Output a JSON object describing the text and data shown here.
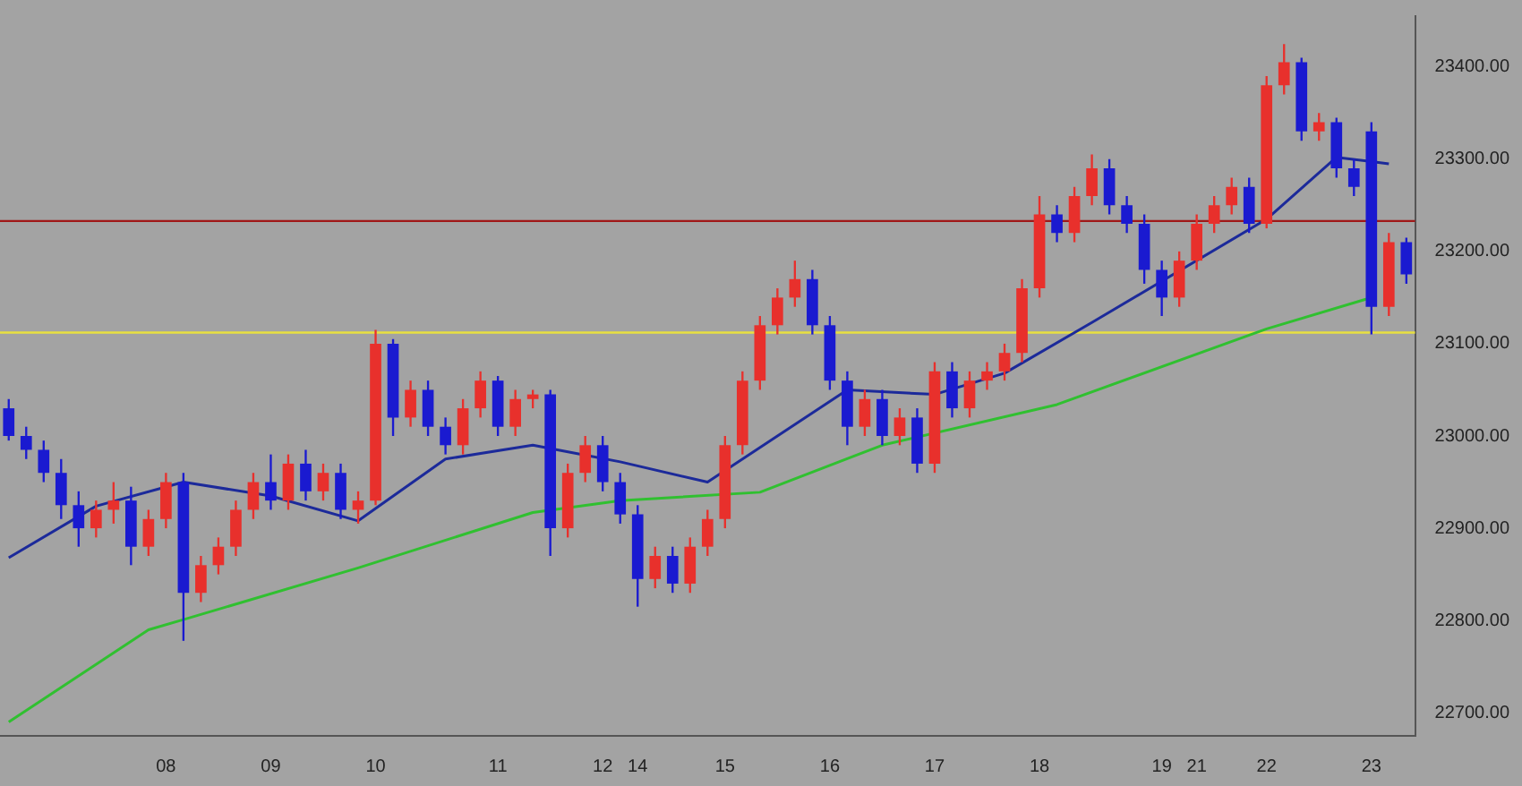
{
  "chart_data": {
    "type": "candlestick",
    "categories": [
      null,
      null,
      null,
      null,
      null,
      null,
      null,
      null,
      null,
      "08",
      null,
      null,
      null,
      null,
      null,
      "09",
      null,
      null,
      null,
      null,
      null,
      "10",
      null,
      null,
      null,
      null,
      null,
      null,
      "11",
      null,
      null,
      null,
      null,
      null,
      "12",
      null,
      "14",
      null,
      null,
      null,
      null,
      "15",
      null,
      null,
      null,
      null,
      null,
      "16",
      null,
      null,
      null,
      null,
      null,
      "17",
      null,
      null,
      null,
      null,
      null,
      "18",
      null,
      null,
      null,
      null,
      null,
      null,
      "19",
      null,
      "21",
      null,
      null,
      null,
      "22",
      null,
      null,
      null,
      null,
      null,
      "23",
      null,
      null
    ],
    "ohlc": [
      [
        23030,
        23040,
        22995,
        23000
      ],
      [
        23000,
        23010,
        22975,
        22985
      ],
      [
        22985,
        22995,
        22950,
        22960
      ],
      [
        22960,
        22975,
        22910,
        22925
      ],
      [
        22925,
        22940,
        22880,
        22900
      ],
      [
        22900,
        22930,
        22890,
        22920
      ],
      [
        22920,
        22950,
        22905,
        22930
      ],
      [
        22930,
        22945,
        22860,
        22880
      ],
      [
        22880,
        22920,
        22870,
        22910
      ],
      [
        22910,
        22960,
        22900,
        22950
      ],
      [
        22950,
        22960,
        22778,
        22830
      ],
      [
        22830,
        22870,
        22820,
        22860
      ],
      [
        22860,
        22890,
        22850,
        22880
      ],
      [
        22880,
        22930,
        22870,
        22920
      ],
      [
        22920,
        22960,
        22910,
        22950
      ],
      [
        22950,
        22980,
        22920,
        22930
      ],
      [
        22930,
        22980,
        22920,
        22970
      ],
      [
        22970,
        22985,
        22930,
        22940
      ],
      [
        22940,
        22970,
        22930,
        22960
      ],
      [
        22960,
        22970,
        22910,
        22920
      ],
      [
        22920,
        22940,
        22905,
        22930
      ],
      [
        22930,
        23115,
        22925,
        23100
      ],
      [
        23100,
        23105,
        23000,
        23020
      ],
      [
        23020,
        23060,
        23010,
        23050
      ],
      [
        23050,
        23060,
        23000,
        23010
      ],
      [
        23010,
        23020,
        22980,
        22990
      ],
      [
        22990,
        23040,
        22980,
        23030
      ],
      [
        23030,
        23070,
        23020,
        23060
      ],
      [
        23060,
        23065,
        23000,
        23010
      ],
      [
        23010,
        23050,
        23000,
        23040
      ],
      [
        23040,
        23050,
        23030,
        23045
      ],
      [
        23045,
        23050,
        22870,
        22900
      ],
      [
        22900,
        22970,
        22890,
        22960
      ],
      [
        22960,
        23000,
        22950,
        22990
      ],
      [
        22990,
        23000,
        22940,
        22950
      ],
      [
        22950,
        22960,
        22905,
        22915
      ],
      [
        22915,
        22925,
        22815,
        22845
      ],
      [
        22845,
        22880,
        22835,
        22870
      ],
      [
        22870,
        22880,
        22830,
        22840
      ],
      [
        22840,
        22890,
        22830,
        22880
      ],
      [
        22880,
        22920,
        22870,
        22910
      ],
      [
        22910,
        23000,
        22900,
        22990
      ],
      [
        22990,
        23070,
        22980,
        23060
      ],
      [
        23060,
        23130,
        23050,
        23120
      ],
      [
        23120,
        23160,
        23110,
        23150
      ],
      [
        23150,
        23190,
        23140,
        23170
      ],
      [
        23170,
        23180,
        23110,
        23120
      ],
      [
        23120,
        23130,
        23050,
        23060
      ],
      [
        23060,
        23070,
        22990,
        23010
      ],
      [
        23010,
        23050,
        23000,
        23040
      ],
      [
        23040,
        23050,
        22990,
        23000
      ],
      [
        23000,
        23030,
        22990,
        23020
      ],
      [
        23020,
        23030,
        22960,
        22970
      ],
      [
        22970,
        23080,
        22960,
        23070
      ],
      [
        23070,
        23080,
        23020,
        23030
      ],
      [
        23030,
        23070,
        23020,
        23060
      ],
      [
        23060,
        23080,
        23050,
        23070
      ],
      [
        23070,
        23100,
        23060,
        23090
      ],
      [
        23090,
        23170,
        23080,
        23160
      ],
      [
        23160,
        23260,
        23150,
        23240
      ],
      [
        23240,
        23250,
        23210,
        23220
      ],
      [
        23220,
        23270,
        23210,
        23260
      ],
      [
        23260,
        23305,
        23250,
        23290
      ],
      [
        23290,
        23300,
        23240,
        23250
      ],
      [
        23250,
        23260,
        23220,
        23230
      ],
      [
        23230,
        23240,
        23165,
        23180
      ],
      [
        23180,
        23190,
        23130,
        23150
      ],
      [
        23150,
        23200,
        23140,
        23190
      ],
      [
        23190,
        23240,
        23180,
        23230
      ],
      [
        23230,
        23260,
        23220,
        23250
      ],
      [
        23250,
        23280,
        23240,
        23270
      ],
      [
        23270,
        23280,
        23220,
        23230
      ],
      [
        23230,
        23390,
        23225,
        23380
      ],
      [
        23380,
        23424.75,
        23370,
        23405
      ],
      [
        23405,
        23410,
        23320,
        23330
      ],
      [
        23330,
        23350,
        23320,
        23340
      ],
      [
        23340,
        23345,
        23280,
        23290
      ],
      [
        23290,
        23300,
        23260,
        23270
      ],
      [
        23330,
        23340,
        23110,
        23140
      ],
      [
        23140,
        23220,
        23130,
        23210
      ],
      [
        23210,
        23215,
        23165,
        23175
      ]
    ],
    "colors": [
      "#1a1ad0",
      "#1a1ad0",
      "#1a1ad0",
      "#1a1ad0",
      "#1a1ad0",
      "#e8302c",
      "#e8302c",
      "#1a1ad0",
      "#e8302c",
      "#e8302c",
      "#1a1ad0",
      "#e8302c",
      "#e8302c",
      "#e8302c",
      "#e8302c",
      "#1a1ad0",
      "#e8302c",
      "#1a1ad0",
      "#e8302c",
      "#1a1ad0",
      "#e8302c",
      "#e8302c",
      "#1a1ad0",
      "#e8302c",
      "#1a1ad0",
      "#1a1ad0",
      "#e8302c",
      "#e8302c",
      "#1a1ad0",
      "#e8302c",
      "#e8302c",
      "#1a1ad0",
      "#e8302c",
      "#e8302c",
      "#1a1ad0",
      "#1a1ad0",
      "#1a1ad0",
      "#e8302c",
      "#1a1ad0",
      "#e8302c",
      "#e8302c",
      "#e8302c",
      "#e8302c",
      "#e8302c",
      "#e8302c",
      "#e8302c",
      "#1a1ad0",
      "#1a1ad0",
      "#1a1ad0",
      "#e8302c",
      "#1a1ad0",
      "#e8302c",
      "#1a1ad0",
      "#e8302c",
      "#1a1ad0",
      "#e8302c",
      "#e8302c",
      "#e8302c",
      "#e8302c",
      "#e8302c",
      "#1a1ad0",
      "#e8302c",
      "#e8302c",
      "#1a1ad0",
      "#1a1ad0",
      "#1a1ad0",
      "#1a1ad0",
      "#e8302c",
      "#e8302c",
      "#e8302c",
      "#e8302c",
      "#1a1ad0",
      "#e8302c",
      "#e8302c",
      "#1a1ad0",
      "#e8302c",
      "#1a1ad0",
      "#1a1ad0",
      "#1a1ad0",
      "#e8302c",
      "#1a1ad0"
    ],
    "series": [
      {
        "type": "line",
        "color": "#30c030",
        "values": [
          22690,
          null,
          null,
          null,
          null,
          null,
          null,
          null,
          22790,
          null,
          22801,
          null,
          null,
          null,
          null,
          null,
          null,
          null,
          null,
          null,
          22857,
          null,
          null,
          null,
          null,
          null,
          null,
          null,
          null,
          null,
          22917,
          null,
          null,
          null,
          null,
          22930,
          null,
          null,
          null,
          null,
          null,
          null,
          null,
          22939,
          null,
          null,
          null,
          null,
          null,
          null,
          22990,
          null,
          null,
          null,
          null,
          null,
          null,
          null,
          null,
          null,
          23034,
          null,
          null,
          null,
          null,
          null,
          null,
          null,
          null,
          null,
          null,
          null,
          23116,
          null,
          null,
          null,
          null,
          null,
          23150,
          null,
          null
        ]
      },
      {
        "type": "line",
        "color": "#1c2a9a",
        "values": [
          22868,
          null,
          null,
          null,
          null,
          22924,
          null,
          null,
          null,
          null,
          22950,
          null,
          null,
          null,
          null,
          22935,
          null,
          null,
          null,
          null,
          22908,
          null,
          null,
          null,
          null,
          22975,
          null,
          null,
          null,
          null,
          22990,
          null,
          null,
          null,
          null,
          22972,
          null,
          null,
          null,
          null,
          22950,
          null,
          null,
          null,
          null,
          null,
          null,
          null,
          23050,
          null,
          null,
          null,
          null,
          23045,
          null,
          null,
          null,
          23068,
          null,
          null,
          null,
          null,
          23123,
          null,
          null,
          null,
          null,
          null,
          null,
          null,
          null,
          null,
          23235,
          null,
          null,
          null,
          23302,
          null,
          null,
          23295,
          null
        ]
      }
    ],
    "ylim": [
      22675,
      23455
    ],
    "yticks": [
      {
        "value": 22700,
        "label": "22700.00"
      },
      {
        "value": 22800,
        "label": "22800.00"
      },
      {
        "value": 22900,
        "label": "22900.00"
      },
      {
        "value": 23000,
        "label": "23000.00"
      },
      {
        "value": 23100,
        "label": "23100.00"
      },
      {
        "value": 23200,
        "label": "23200.00"
      },
      {
        "value": 23300,
        "label": "23300.00"
      },
      {
        "value": 23400,
        "label": "23400.00"
      }
    ],
    "ref_lines": [
      {
        "axis": "y",
        "value": 23233,
        "color": "#a01818"
      },
      {
        "axis": "y",
        "value": 23112,
        "color": "#e8e040"
      }
    ]
  }
}
